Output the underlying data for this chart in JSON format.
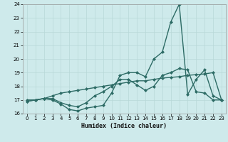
{
  "xlabel": "Humidex (Indice chaleur)",
  "x": [
    0,
    1,
    2,
    3,
    4,
    5,
    6,
    7,
    8,
    9,
    10,
    11,
    12,
    13,
    14,
    15,
    16,
    17,
    18,
    19,
    20,
    21,
    22,
    23
  ],
  "line1": [
    17.0,
    17.0,
    17.1,
    17.0,
    16.7,
    16.3,
    16.2,
    16.4,
    16.5,
    16.6,
    17.5,
    18.8,
    19.0,
    19.0,
    18.7,
    20.0,
    20.5,
    22.7,
    24.0,
    17.4,
    18.5,
    19.2,
    17.3,
    17.0
  ],
  "line2": [
    16.9,
    17.0,
    17.1,
    17.1,
    16.8,
    16.6,
    16.5,
    16.8,
    17.3,
    17.6,
    18.0,
    18.5,
    18.5,
    18.1,
    17.7,
    18.0,
    18.8,
    19.0,
    19.3,
    19.2,
    17.6,
    17.5,
    17.0,
    17.0
  ],
  "line3": [
    16.9,
    17.0,
    17.1,
    17.3,
    17.5,
    17.6,
    17.7,
    17.8,
    17.9,
    18.0,
    18.1,
    18.2,
    18.3,
    18.4,
    18.4,
    18.5,
    18.6,
    18.65,
    18.7,
    18.8,
    18.85,
    18.9,
    19.0,
    17.0
  ],
  "line_color": "#2d6b65",
  "bg_color": "#ceeaeb",
  "grid_color": "#b8d8d8",
  "ylim": [
    16,
    24
  ],
  "yticks": [
    16,
    17,
    18,
    19,
    20,
    21,
    22,
    23,
    24
  ],
  "xlim": [
    -0.5,
    23.5
  ],
  "xticks": [
    0,
    1,
    2,
    3,
    4,
    5,
    6,
    7,
    8,
    9,
    10,
    11,
    12,
    13,
    14,
    15,
    16,
    17,
    18,
    19,
    20,
    21,
    22,
    23
  ],
  "marker": "D",
  "markersize": 2.0,
  "linewidth": 1.0
}
